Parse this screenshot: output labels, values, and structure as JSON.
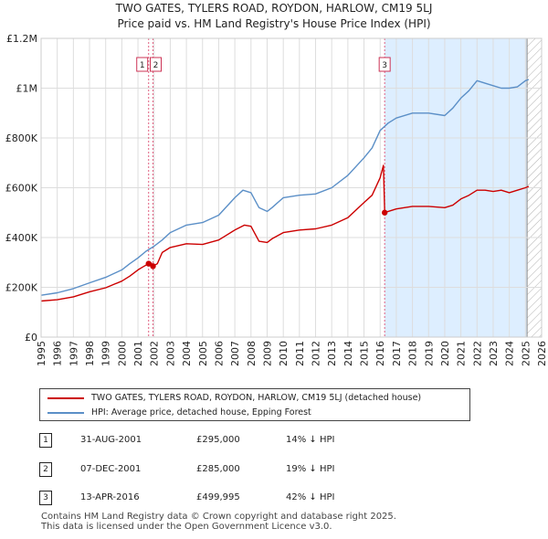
{
  "title_line1": "TWO GATES, TYLERS ROAD, ROYDON, HARLOW, CM19 5LJ",
  "title_line2": "Price paid vs. HM Land Registry's House Price Index (HPI)",
  "legend": {
    "property_label": "TWO GATES, TYLERS ROAD, ROYDON, HARLOW, CM19 5LJ (detached house)",
    "hpi_label": "HPI: Average price, detached house, Epping Forest"
  },
  "transactions": [
    {
      "num": "1",
      "date": "31-AUG-2001",
      "price": "£295,000",
      "hpi": "14% ↓ HPI"
    },
    {
      "num": "2",
      "date": "07-DEC-2001",
      "price": "£285,000",
      "hpi": "19% ↓ HPI"
    },
    {
      "num": "3",
      "date": "13-APR-2016",
      "price": "£499,995",
      "hpi": "42% ↓ HPI"
    }
  ],
  "footer_line1": "Contains HM Land Registry data © Crown copyright and database right 2025.",
  "footer_line2": "This data is licensed under the Open Government Licence v3.0.",
  "colors": {
    "property": "#cc0000",
    "hpi": "#5b8fc7",
    "shade": "#ddeeff",
    "marker_line": "#e06080"
  },
  "chart_data": {
    "type": "line",
    "xlim": [
      1995,
      2026
    ],
    "ylim": [
      0,
      1200000
    ],
    "x_ticks": [
      "1995",
      "1996",
      "1997",
      "1998",
      "1999",
      "2000",
      "2001",
      "2002",
      "2003",
      "2004",
      "2005",
      "2006",
      "2007",
      "2008",
      "2009",
      "2010",
      "2011",
      "2012",
      "2013",
      "2014",
      "2015",
      "2016",
      "2017",
      "2018",
      "2019",
      "2020",
      "2021",
      "2022",
      "2023",
      "2024",
      "2025",
      "2026"
    ],
    "y_ticks": [
      {
        "value": 0,
        "label": "£0"
      },
      {
        "value": 200000,
        "label": "£200K"
      },
      {
        "value": 400000,
        "label": "£400K"
      },
      {
        "value": 600000,
        "label": "£600K"
      },
      {
        "value": 800000,
        "label": "£800K"
      },
      {
        "value": 1000000,
        "label": "£1M"
      },
      {
        "value": 1200000,
        "label": "£1.2M"
      }
    ],
    "shaded_range": [
      2016.28,
      2025.1
    ],
    "hatch_from": 2025.1,
    "events": [
      {
        "label": "1",
        "x": 2001.66
      },
      {
        "label": "2",
        "x": 2001.93
      },
      {
        "label": "3",
        "x": 2016.28
      }
    ],
    "markers": [
      {
        "x": 2001.66,
        "y": 295000
      },
      {
        "x": 2001.93,
        "y": 285000
      },
      {
        "x": 2016.28,
        "y": 499995
      }
    ],
    "series": [
      {
        "name": "TWO GATES, TYLERS ROAD, ROYDON, HARLOW, CM19 5LJ (detached house)",
        "x": [
          1995.0,
          1996.0,
          1997.0,
          1998.0,
          1999.0,
          2000.0,
          2000.5,
          2001.0,
          2001.3,
          2001.66,
          2001.8,
          2001.93,
          2002.2,
          2002.5,
          2003.0,
          2004.0,
          2005.0,
          2006.0,
          2007.0,
          2007.6,
          2008.0,
          2008.5,
          2009.0,
          2009.3,
          2010.0,
          2011.0,
          2012.0,
          2013.0,
          2014.0,
          2015.0,
          2015.5,
          2016.0,
          2016.2,
          2016.28,
          2016.5,
          2017.0,
          2018.0,
          2019.0,
          2020.0,
          2020.5,
          2021.0,
          2021.5,
          2022.0,
          2022.5,
          2023.0,
          2023.5,
          2024.0,
          2024.5,
          2025.0,
          2025.2
        ],
        "values": [
          145000,
          150000,
          162000,
          182000,
          198000,
          225000,
          245000,
          270000,
          282000,
          295000,
          300000,
          285000,
          295000,
          340000,
          360000,
          375000,
          372000,
          390000,
          430000,
          450000,
          445000,
          385000,
          380000,
          395000,
          420000,
          430000,
          435000,
          450000,
          480000,
          540000,
          570000,
          640000,
          690000,
          499995,
          505000,
          515000,
          525000,
          525000,
          520000,
          530000,
          555000,
          570000,
          590000,
          590000,
          585000,
          590000,
          580000,
          590000,
          600000,
          605000
        ]
      },
      {
        "name": "HPI: Average price, detached house, Epping Forest",
        "x": [
          1995.0,
          1996.0,
          1997.0,
          1998.0,
          1999.0,
          2000.0,
          2000.5,
          2001.0,
          2001.5,
          2002.0,
          2002.5,
          2003.0,
          2004.0,
          2005.0,
          2006.0,
          2007.0,
          2007.5,
          2008.0,
          2008.5,
          2009.0,
          2009.3,
          2010.0,
          2011.0,
          2012.0,
          2013.0,
          2014.0,
          2015.0,
          2015.5,
          2016.0,
          2016.5,
          2017.0,
          2018.0,
          2019.0,
          2020.0,
          2020.5,
          2021.0,
          2021.5,
          2022.0,
          2022.5,
          2023.0,
          2023.5,
          2024.0,
          2024.5,
          2025.0,
          2025.2
        ],
        "values": [
          168000,
          178000,
          195000,
          218000,
          240000,
          270000,
          295000,
          318000,
          345000,
          365000,
          390000,
          420000,
          450000,
          460000,
          490000,
          560000,
          590000,
          580000,
          520000,
          505000,
          520000,
          560000,
          570000,
          575000,
          600000,
          650000,
          720000,
          760000,
          830000,
          860000,
          880000,
          900000,
          900000,
          890000,
          920000,
          960000,
          990000,
          1030000,
          1020000,
          1010000,
          1000000,
          1000000,
          1005000,
          1030000,
          1035000
        ]
      }
    ]
  }
}
